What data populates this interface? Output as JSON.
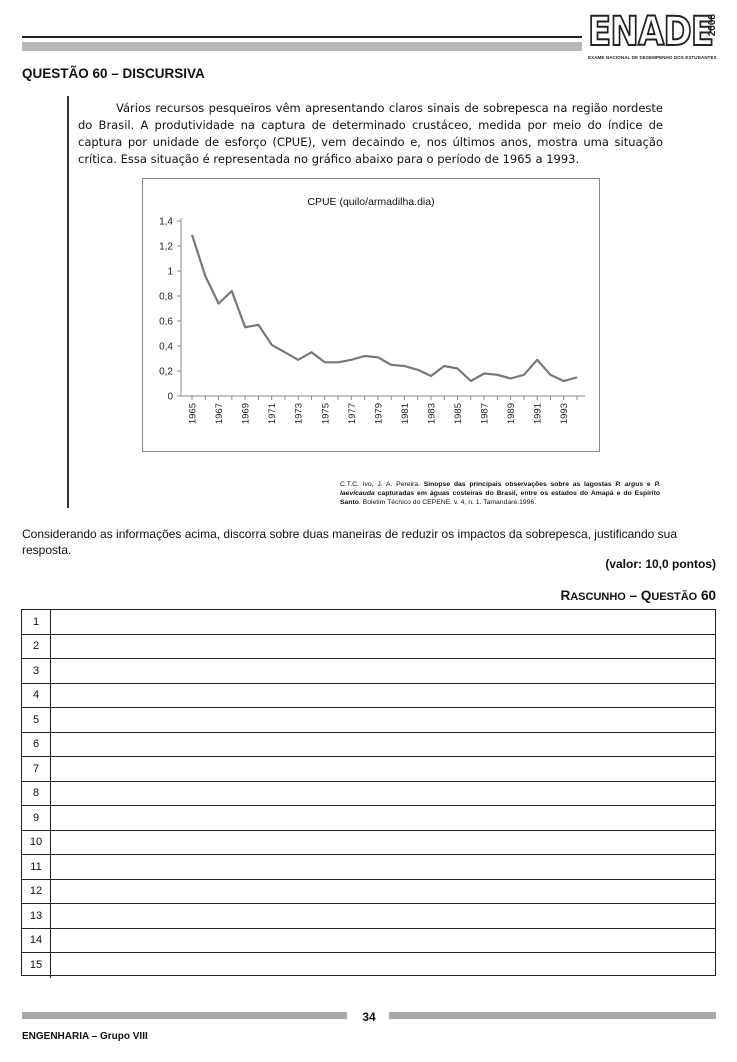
{
  "header": {
    "logo_text": "ENADE",
    "logo_year": "2008",
    "logo_subtitle": "EXAME NACIONAL DE DESEMPENHO DOS ESTUDANTES"
  },
  "question": {
    "title": "QUESTÃO 60 – DISCURSIVA",
    "intro": "Vários recursos pesqueiros vêm apresentando claros sinais de sobrepesca na região nordeste do Brasil. A produtividade na captura de determinado crustáceo, medida por meio do índice de captura por unidade de esforço (CPUE), vem decaindo e, nos últimos anos, mostra uma situação crítica. Essa situação é representada no gráfico abaixo para o período de 1965 a 1993.",
    "citation_plain_1": "C.T.C. Ivo, J. A. Pereira. ",
    "citation_bold": "Sinopse das principais observações sobre as lagostas ",
    "citation_italic_1": "P. argus",
    "citation_bold_2": " e ",
    "citation_italic_2": "P. laevicauda",
    "citation_bold_3": " capturadas em águas costeiras do Brasil, entre os estados do Amapá e do Espírito Santo",
    "citation_plain_2": ". Boletim Técnico do CEPENE. v. 4, n. 1. Tamandaré.1996.",
    "prompt": "Considerando as informações acima, discorra sobre duas maneiras de reduzir os impactos da sobrepesca, justificando sua resposta.",
    "valor": "(valor: 10,0 pontos)"
  },
  "draft": {
    "title_big_r": "R",
    "title_rest_1": "ASCUNHO",
    "title_dash": " – ",
    "title_big_q": "Q",
    "title_rest_2": "UESTÃO",
    "title_num": " 60",
    "lines": [
      "1",
      "2",
      "3",
      "4",
      "5",
      "6",
      "7",
      "8",
      "9",
      "10",
      "11",
      "12",
      "13",
      "14",
      "15"
    ]
  },
  "footer": {
    "page_number": "34",
    "label": "ENGENHARIA – Grupo VIII"
  },
  "chart_data": {
    "type": "line",
    "title": "CPUE (quilo/armadilha.dia)",
    "x": [
      1965,
      1966,
      1967,
      1968,
      1969,
      1970,
      1971,
      1972,
      1973,
      1974,
      1975,
      1976,
      1977,
      1978,
      1979,
      1980,
      1981,
      1982,
      1983,
      1984,
      1985,
      1986,
      1987,
      1988,
      1989,
      1990,
      1991,
      1992,
      1993,
      1994
    ],
    "series": [
      {
        "values": [
          1.29,
          0.96,
          0.74,
          0.84,
          0.55,
          0.57,
          0.41,
          0.35,
          0.29,
          0.35,
          0.27,
          0.27,
          0.29,
          0.32,
          0.31,
          0.25,
          0.24,
          0.21,
          0.16,
          0.24,
          0.22,
          0.12,
          0.18,
          0.17,
          0.14,
          0.17,
          0.29,
          0.17,
          0.12,
          0.15
        ]
      }
    ],
    "x_tick_labels": [
      "1965",
      "1967",
      "1969",
      "1971",
      "1973",
      "1975",
      "1977",
      "1979",
      "1981",
      "1983",
      "1985",
      "1987",
      "1989",
      "1991",
      "1993"
    ],
    "y_tick_labels": [
      "0",
      "0,2",
      "0,4",
      "0,6",
      "0,8",
      "1",
      "1,2",
      "1,4"
    ],
    "ylim": [
      0,
      1.4
    ],
    "grid": false,
    "line_color": "#777777"
  }
}
